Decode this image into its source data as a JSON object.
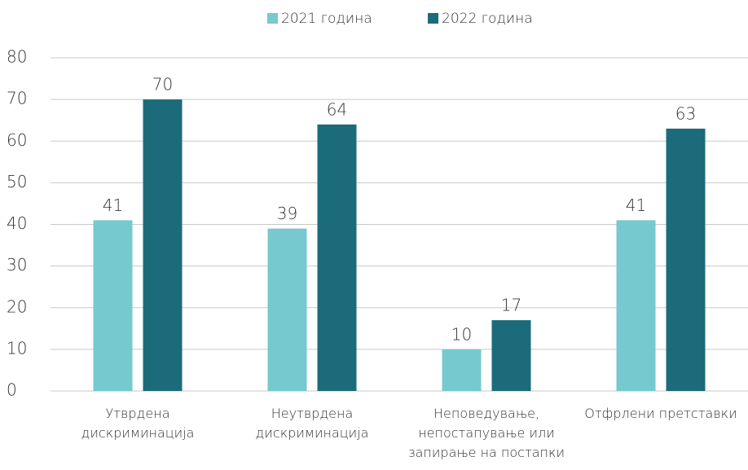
{
  "chart_data": {
    "type": "bar",
    "categories": [
      "Утврдена дискриминација",
      "Неутврдена дискриминација",
      "Неповедување, непостапување или запирање на постапки",
      "Отфрлени претставки"
    ],
    "series": [
      {
        "name": "2021 година",
        "color": "#76c9cf",
        "values": [
          41,
          39,
          10,
          41
        ]
      },
      {
        "name": "2022 година",
        "color": "#1c6b7b",
        "values": [
          70,
          64,
          17,
          63
        ]
      }
    ],
    "ylim": [
      0,
      80
    ],
    "yticks": [
      0,
      10,
      20,
      30,
      40,
      50,
      60,
      70,
      80
    ],
    "grid": true,
    "legend": "top"
  }
}
